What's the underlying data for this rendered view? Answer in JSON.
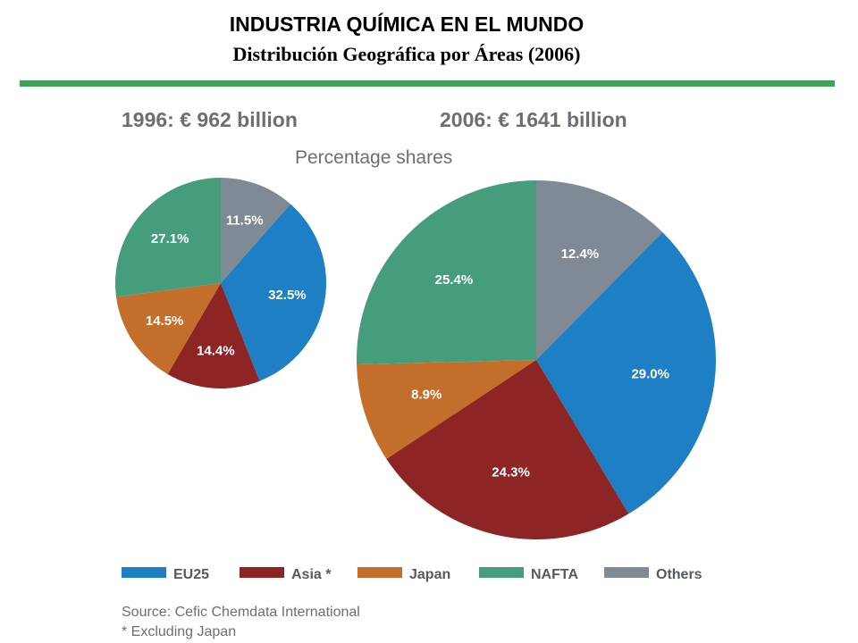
{
  "header": {
    "title": "INDUSTRIA QUÍMICA EN EL MUNDO",
    "subtitle": "Distribución Geográfica por Áreas (2006)"
  },
  "colors": {
    "rule": "#3fa256",
    "EU25": "#1f7fc4",
    "Asia *": "#8e2525",
    "Japan": "#c46e2b",
    "NAFTA": "#459d7c",
    "Others": "#7f8a95"
  },
  "chart_data": [
    {
      "type": "pie",
      "heading": "1996: € 962 billion",
      "slices": [
        {
          "label": "Others",
          "value": 11.5,
          "text": "11.5%"
        },
        {
          "label": "EU25",
          "value": 32.5,
          "text": "32.5%"
        },
        {
          "label": "Asia *",
          "value": 14.4,
          "text": "14.4%"
        },
        {
          "label": "Japan",
          "value": 14.5,
          "text": "14.5%"
        },
        {
          "label": "NAFTA",
          "value": 27.1,
          "text": "27.1%"
        }
      ]
    },
    {
      "type": "pie",
      "heading": "2006: € 1641 billion",
      "slices": [
        {
          "label": "Others",
          "value": 12.4,
          "text": "12.4%"
        },
        {
          "label": "EU25",
          "value": 29.0,
          "text": "29.0%"
        },
        {
          "label": "Asia *",
          "value": 24.3,
          "text": "24.3%"
        },
        {
          "label": "Japan",
          "value": 8.9,
          "text": "8.9%"
        },
        {
          "label": "NAFTA",
          "value": 25.4,
          "text": "25.4%"
        }
      ]
    }
  ],
  "chart_caption": "Percentage shares",
  "legend": [
    "EU25",
    "Asia *",
    "Japan",
    "NAFTA",
    "Others"
  ],
  "footnotes": {
    "source": "Source: Cefic Chemdata International",
    "note": "* Excluding Japan"
  }
}
